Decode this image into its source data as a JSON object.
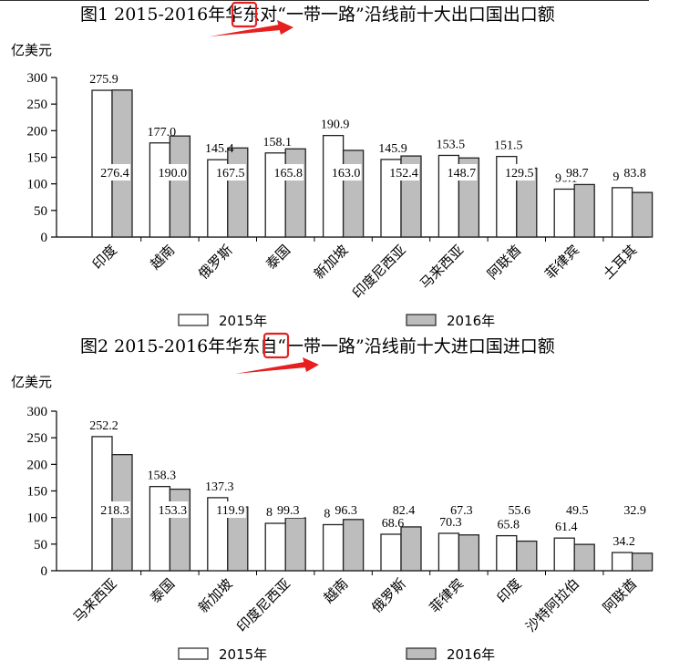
{
  "colors": {
    "bar_2015": "#ffffff",
    "bar_2016": "#bdbdbd",
    "bar_stroke": "#222222",
    "highlight_box": "#e62020",
    "arrow": "#e62020"
  },
  "chart_data": [
    {
      "type": "bar",
      "title_prefix": "图1 2015-2016年华东",
      "title_highlight": "对",
      "title_suffix": "“一带一路”沿线前十大出口国出口额",
      "unit_label": "亿美元",
      "ylim": [
        0,
        300
      ],
      "yticks": [
        0,
        50,
        100,
        150,
        200,
        250,
        300
      ],
      "categories": [
        "印度",
        "越南",
        "俄罗斯",
        "泰国",
        "新加坡",
        "印度尼西亚",
        "马来西亚",
        "阿联酋",
        "菲律宾",
        "土耳其"
      ],
      "series": [
        {
          "name": "2015年",
          "values": [
            275.9,
            177.0,
            145.4,
            158.1,
            190.9,
            145.9,
            153.5,
            151.5,
            90.1,
            92.8
          ]
        },
        {
          "name": "2016年",
          "values": [
            276.4,
            190.0,
            167.5,
            165.8,
            163.0,
            152.4,
            148.7,
            129.5,
            98.7,
            83.8
          ]
        }
      ],
      "legend_position": "bottom",
      "grid": false
    },
    {
      "type": "bar",
      "title_prefix": "图2 2015-2016年华东",
      "title_highlight": "自",
      "title_suffix": "“一带一路”沿线前十大进口国进口额",
      "unit_label": "亿美元",
      "ylim": [
        0,
        300
      ],
      "yticks": [
        0,
        50,
        100,
        150,
        200,
        250,
        300
      ],
      "categories": [
        "马来西亚",
        "泰国",
        "新加坡",
        "印度尼西亚",
        "越南",
        "俄罗斯",
        "菲律宾",
        "印度",
        "沙特阿拉伯",
        "阿联酋"
      ],
      "series": [
        {
          "name": "2015年",
          "values": [
            252.2,
            158.3,
            137.3,
            89.1,
            86.6,
            68.6,
            70.3,
            65.8,
            61.4,
            34.2
          ]
        },
        {
          "name": "2016年",
          "values": [
            218.3,
            153.3,
            119.9,
            99.3,
            96.3,
            82.4,
            67.3,
            55.6,
            49.5,
            32.9
          ]
        }
      ],
      "legend_position": "bottom",
      "grid": false
    }
  ]
}
